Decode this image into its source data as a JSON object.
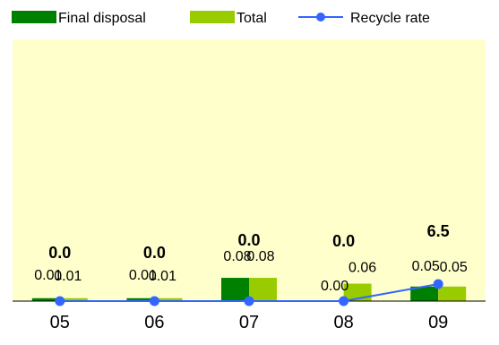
{
  "chart_data": {
    "type": "bar",
    "categories": [
      "05",
      "06",
      "07",
      "08",
      "09"
    ],
    "series": [
      {
        "name": "Final disposal",
        "kind": "bar",
        "color": "#008000",
        "values": [
          0.01,
          0.01,
          0.08,
          0.0,
          0.05
        ]
      },
      {
        "name": "Total",
        "kind": "bar",
        "color": "#99cc00",
        "values": [
          0.01,
          0.01,
          0.08,
          0.06,
          0.05
        ]
      },
      {
        "name": "Recycle rate",
        "kind": "line",
        "color": "#3366ff",
        "values": [
          0.0,
          0.0,
          0.0,
          0.0,
          6.5
        ]
      }
    ],
    "bar_labels": {
      "Final disposal": [
        "0.01",
        "0.01",
        "0.08",
        "0.00",
        "0.05"
      ],
      "Total": [
        "0.01",
        "0.01",
        "0.08",
        "0.06",
        "0.05"
      ]
    },
    "line_labels": [
      "0.0",
      "0.0",
      "0.0",
      "0.0",
      "6.5"
    ],
    "bar_ylim": [
      0,
      0.9
    ],
    "line_ylim": [
      0,
      100
    ],
    "legend_position": "top",
    "plot_background": "#ffffcc",
    "grid": false
  }
}
